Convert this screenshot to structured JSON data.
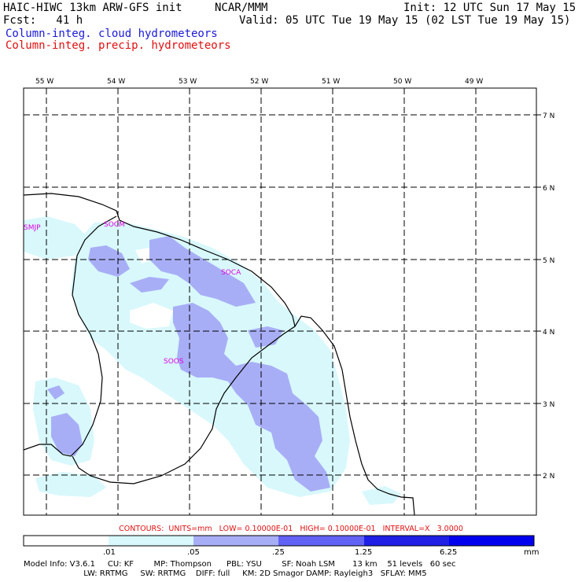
{
  "header": {
    "model_title": "HAIC-HIWC 13km ARW-GFS init",
    "org": "NCAR/MMM",
    "init": "Init: 12 UTC Sun 17 May 15",
    "fcst": "Fcst:   41 h",
    "valid": "Valid: 05 UTC Tue 19 May 15 (02 LST Tue 19 May 15)",
    "field_cloud": "Column-integ. cloud hydrometeors",
    "field_precip": "Column-integ. precip. hydrometeors"
  },
  "map": {
    "lon_labels": [
      "55 W",
      "54 W",
      "53 W",
      "52 W",
      "51 W",
      "50 W",
      "49 W"
    ],
    "lat_labels": [
      "7 N",
      "6 N",
      "5 N",
      "4 N",
      "3 N",
      "2 N"
    ],
    "stations": [
      "SMJP",
      "SOCM",
      "SOCA",
      "SOOS"
    ]
  },
  "contours_line": "CONTOURS:  UNITS=mm   LOW= 0.10000E-01   HIGH= 0.10000E-01   INTERVAL=X   3.0000",
  "colorbar": {
    "ticks": [
      ".01",
      ".05",
      ".25",
      "1.25",
      "6.25"
    ],
    "units": "mm",
    "colors": [
      "#ffffff",
      "#d8f8fc",
      "#a8aef6",
      "#6262f4",
      "#1f1fe6",
      "#0000ee"
    ]
  },
  "footer": {
    "line1": "Model Info: V3.6.1     CU: KF        MP: Thompson      PBL: YSU        SF: Noah LSM       13 km    51 levels   60 sec",
    "line2": "                        LW: RRTMG     SW: RRTMG    DIFF: full     KM: 2D Smagor DAMP: Rayleigh3   SFLAY: MM5"
  }
}
